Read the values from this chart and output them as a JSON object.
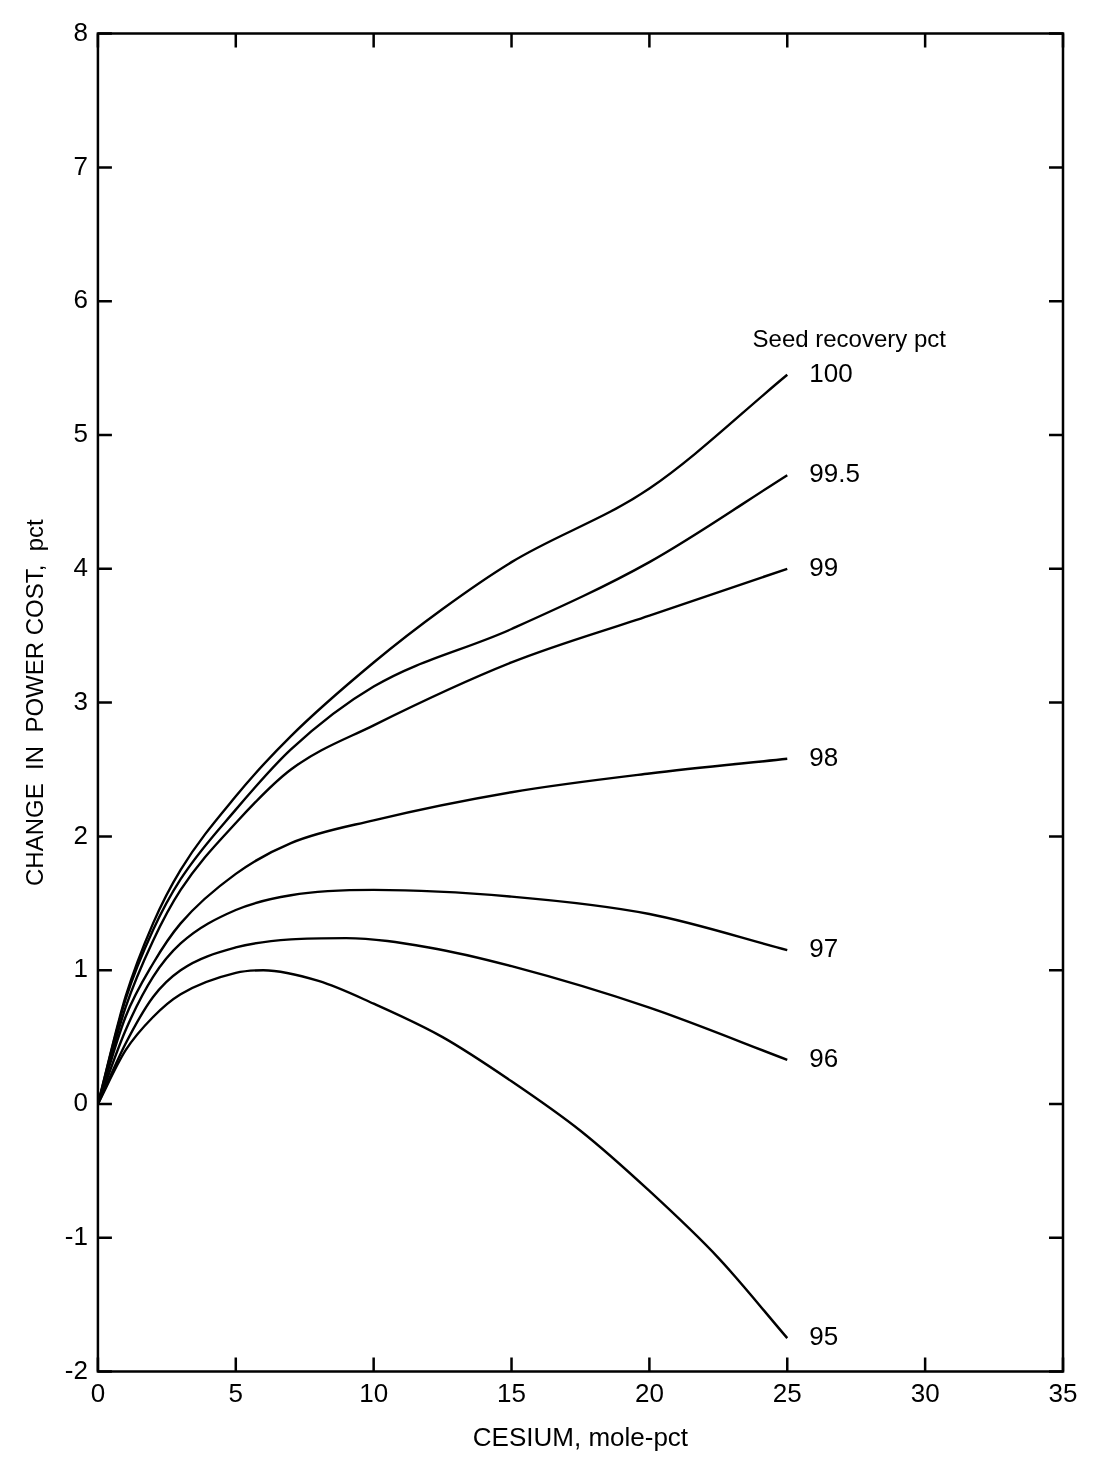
{
  "chart_data": {
    "type": "line",
    "xlabel": "CESIUM, mole-pct",
    "ylabel": "CHANGE  IN  POWER COST,  pct",
    "legend_title": "Seed recovery pct",
    "xlim": [
      0,
      35
    ],
    "xticks": [
      0,
      5,
      10,
      15,
      20,
      25,
      30,
      35
    ],
    "ylim": [
      -2,
      8
    ],
    "yticks": [
      -2,
      -1,
      0,
      1,
      2,
      3,
      4,
      5,
      6,
      7,
      8
    ],
    "grid": false,
    "marker": "none",
    "line_style": "solid",
    "series": [
      {
        "name": "100",
        "color": "#000000",
        "x": [
          0,
          1,
          2,
          3,
          5,
          7,
          10,
          12.5,
          15,
          20,
          25
        ],
        "values": [
          0,
          0.8,
          1.35,
          1.75,
          2.3,
          2.75,
          3.3,
          3.7,
          4.05,
          4.6,
          5.45
        ]
      },
      {
        "name": "99.5",
        "color": "#000000",
        "x": [
          0,
          1,
          2,
          3,
          5,
          7,
          10,
          15,
          20,
          25
        ],
        "values": [
          0,
          0.78,
          1.3,
          1.68,
          2.2,
          2.65,
          3.12,
          3.55,
          4.05,
          4.7
        ]
      },
      {
        "name": "99",
        "color": "#000000",
        "x": [
          0,
          1,
          2,
          3,
          5,
          7,
          10,
          15,
          20,
          25
        ],
        "values": [
          0,
          0.72,
          1.22,
          1.6,
          2.1,
          2.5,
          2.83,
          3.3,
          3.65,
          4.0
        ]
      },
      {
        "name": "98",
        "color": "#000000",
        "x": [
          0,
          1,
          2,
          3,
          5,
          7,
          10,
          15,
          20,
          25
        ],
        "values": [
          0,
          0.65,
          1.05,
          1.35,
          1.72,
          1.95,
          2.12,
          2.33,
          2.47,
          2.58
        ]
      },
      {
        "name": "97",
        "color": "#000000",
        "x": [
          0,
          1,
          2,
          3,
          5,
          7,
          10,
          15,
          20,
          25
        ],
        "values": [
          0,
          0.55,
          0.95,
          1.2,
          1.45,
          1.56,
          1.6,
          1.55,
          1.42,
          1.15
        ]
      },
      {
        "name": "96",
        "color": "#000000",
        "x": [
          0,
          1,
          2,
          3,
          5,
          7,
          9,
          12,
          15,
          20,
          25
        ],
        "values": [
          0,
          0.45,
          0.8,
          1.0,
          1.17,
          1.23,
          1.24,
          1.17,
          1.03,
          0.72,
          0.33
        ]
      },
      {
        "name": "95",
        "color": "#000000",
        "x": [
          0,
          1,
          2,
          3,
          5,
          6,
          8,
          10,
          12.5,
          15,
          17.5,
          20,
          22.5,
          25
        ],
        "values": [
          0,
          0.4,
          0.65,
          0.82,
          0.98,
          1.0,
          0.92,
          0.75,
          0.5,
          0.17,
          -0.2,
          -0.65,
          -1.15,
          -1.75
        ]
      }
    ]
  }
}
